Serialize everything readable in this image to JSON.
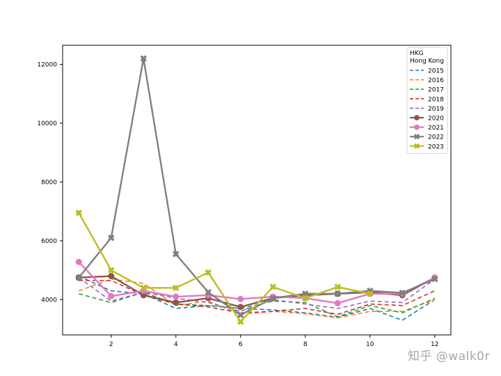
{
  "chart_data": {
    "type": "line",
    "x": [
      1,
      2,
      3,
      4,
      5,
      6,
      7,
      8,
      9,
      10,
      11,
      12
    ],
    "xlim": [
      0.5,
      12.5
    ],
    "ylim": [
      2800,
      12650
    ],
    "xticks": [
      2,
      4,
      6,
      8,
      10,
      12
    ],
    "yticks": [
      4000,
      6000,
      8000,
      10000,
      12000
    ],
    "legend_title": "HKG\nHong Kong",
    "legend_placement": "top-right",
    "grid": false,
    "series": [
      {
        "name": "2015",
        "color": "#1f77b4",
        "style": "dashed",
        "marker": "none",
        "values": [
          4800,
          4300,
          4200,
          3700,
          3800,
          3700,
          3650,
          3550,
          3400,
          3700,
          3300,
          4000
        ]
      },
      {
        "name": "2016",
        "color": "#ff7f0e",
        "style": "dashed",
        "marker": "none",
        "values": [
          4300,
          4700,
          4550,
          3800,
          3950,
          3500,
          3600,
          3520,
          3380,
          3600,
          3600,
          4000
        ]
      },
      {
        "name": "2017",
        "color": "#2ca02c",
        "style": "dashed",
        "marker": "none",
        "values": [
          4200,
          3900,
          4250,
          3850,
          3800,
          3700,
          3950,
          3900,
          3420,
          3800,
          3550,
          4050
        ]
      },
      {
        "name": "2018",
        "color": "#d62728",
        "style": "dashed",
        "marker": "none",
        "values": [
          4650,
          4650,
          4150,
          3850,
          3750,
          3550,
          3600,
          3700,
          3500,
          3850,
          3800,
          4300
        ]
      },
      {
        "name": "2019",
        "color": "#9467bd",
        "style": "dashed",
        "marker": "none",
        "values": [
          4750,
          3950,
          4250,
          4050,
          3900,
          3600,
          4000,
          3850,
          3700,
          3950,
          3900,
          4700
        ]
      },
      {
        "name": "2020",
        "color": "#8c564b",
        "style": "solid",
        "marker": "circle",
        "values": [
          4750,
          4800,
          4150,
          3900,
          4050,
          3750,
          4050,
          4150,
          4200,
          4250,
          4150,
          4750
        ]
      },
      {
        "name": "2021",
        "color": "#e377c2",
        "style": "solid",
        "marker": "circle",
        "values": [
          5280,
          4120,
          4300,
          4100,
          4150,
          4020,
          4100,
          4050,
          3880,
          4200,
          4200,
          4750
        ]
      },
      {
        "name": "2022",
        "color": "#7f7f7f",
        "style": "solid",
        "marker": "x",
        "values": [
          4750,
          6100,
          12200,
          5550,
          4250,
          3480,
          4050,
          4200,
          4200,
          4300,
          4230,
          4700
        ]
      },
      {
        "name": "2023",
        "color": "#bcbd22",
        "style": "solid",
        "marker": "x",
        "values": [
          6950,
          5000,
          4400,
          4400,
          4920,
          3250,
          4430,
          4050,
          4430,
          4200,
          null,
          null
        ]
      }
    ]
  },
  "watermark": "知乎 @walk0r"
}
